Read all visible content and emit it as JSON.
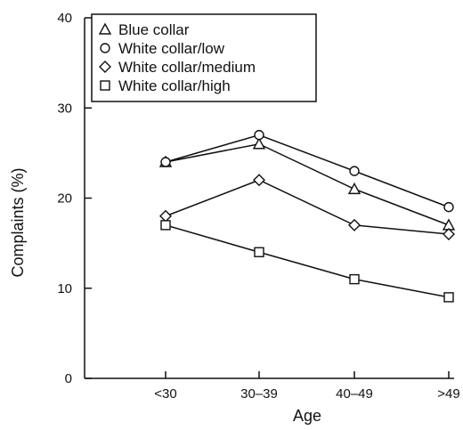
{
  "chart_data": {
    "type": "line",
    "xlabel": "Age",
    "ylabel": "Complaints (%)",
    "categories": [
      "<30",
      "30–39",
      "40–49",
      ">49"
    ],
    "ylim": [
      0,
      40
    ],
    "yticks": [
      0,
      10,
      20,
      30,
      40
    ],
    "legend_position": "top-left",
    "grid": false,
    "series": [
      {
        "name": "Blue collar",
        "marker": "triangle",
        "values": [
          24,
          26,
          21,
          17
        ]
      },
      {
        "name": "White collar/low",
        "marker": "circle",
        "values": [
          24,
          27,
          23,
          19
        ]
      },
      {
        "name": "White collar/medium",
        "marker": "diamond",
        "values": [
          18,
          22,
          17,
          16
        ]
      },
      {
        "name": "White collar/high",
        "marker": "square",
        "values": [
          17,
          14,
          11,
          9
        ]
      }
    ]
  }
}
